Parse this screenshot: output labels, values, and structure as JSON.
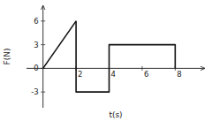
{
  "chart_data": {
    "type": "line",
    "series": [
      {
        "x": [
          0,
          2
        ],
        "values": [
          0,
          6
        ],
        "color": "#111111"
      },
      {
        "x": [
          2,
          2,
          4,
          4
        ],
        "values": [
          6,
          -3,
          -3,
          0
        ],
        "color": "#111111"
      },
      {
        "x": [
          4,
          4,
          8,
          8
        ],
        "values": [
          0,
          3,
          3,
          0
        ],
        "color": "#111111"
      }
    ],
    "xlim": [
      -1.0,
      9.8
    ],
    "ylim": [
      -5.0,
      8.0
    ],
    "xticks": [
      2,
      4,
      6,
      8
    ],
    "yticks": [
      -3,
      0,
      3,
      6
    ],
    "x_label": "t(s)",
    "y_label": "F(N)",
    "grid": false
  }
}
